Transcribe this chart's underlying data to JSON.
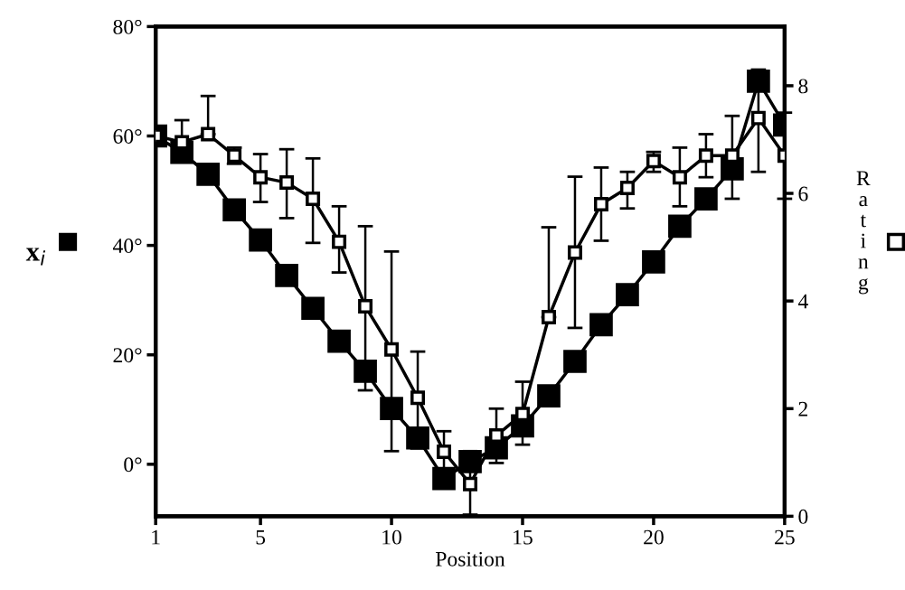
{
  "chart_data": {
    "type": "line",
    "xlabel": "Position",
    "ylabel": "x$_{i}$",
    "y2label": "Rating",
    "x": [
      1,
      2,
      3,
      4,
      5,
      6,
      7,
      8,
      9,
      10,
      11,
      12,
      13,
      14,
      15,
      16,
      17,
      18,
      19,
      20,
      21,
      22,
      23,
      24,
      25
    ],
    "xlim": [
      1,
      25
    ],
    "xticks": [
      1,
      5,
      10,
      15,
      20,
      25
    ],
    "ylim": [
      -9.5,
      80
    ],
    "yticks": [
      {
        "value": 0,
        "label": "0°"
      },
      {
        "value": 20,
        "label": "20°"
      },
      {
        "value": 40,
        "label": "40°"
      },
      {
        "value": 60,
        "label": "60°"
      },
      {
        "value": 80,
        "label": "80°"
      }
    ],
    "y2lim": [
      0,
      9.1
    ],
    "y2ticks": [
      0,
      2,
      4,
      6,
      8
    ],
    "marker": "square",
    "grid": false,
    "legend": false,
    "series": [
      {
        "color": "#000000",
        "values": [
          60,
          57,
          53,
          46.5,
          41,
          34.5,
          28.5,
          22.5,
          17,
          10.2,
          4.8,
          -2.6,
          0.5,
          3,
          7,
          12.5,
          18.8,
          25.5,
          31,
          37,
          43.5,
          48.5,
          54,
          70,
          62
        ]
      },
      {
        "color": "#000000",
        "axis": "y2",
        "values": [
          7.07,
          6.95,
          7.1,
          6.7,
          6.3,
          6.2,
          5.9,
          5.1,
          3.9,
          3.1,
          2.2,
          1.2,
          0.6,
          1.5,
          1.9,
          3.7,
          4.9,
          5.8,
          6.1,
          6.6,
          6.3,
          6.7,
          6.7,
          7.4,
          6.7
        ],
        "errors": [
          null,
          [
            6.6,
            7.36
          ],
          [
            7.1,
            7.81
          ],
          [
            6.55,
            6.85
          ],
          [
            5.84,
            6.73
          ],
          [
            5.54,
            6.82
          ],
          [
            5.08,
            6.65
          ],
          [
            4.53,
            5.76
          ],
          [
            2.34,
            5.39
          ],
          [
            1.21,
            4.92
          ],
          [
            1.26,
            3.06
          ],
          [
            0.88,
            1.58
          ],
          [
            0.03,
            1.21
          ],
          [
            0.99,
            2.0
          ],
          [
            1.33,
            2.5
          ],
          [
            3.7,
            5.37
          ],
          [
            3.5,
            6.31
          ],
          [
            5.12,
            6.48
          ],
          [
            5.72,
            6.4
          ],
          [
            6.4,
            6.77
          ],
          [
            5.76,
            6.85
          ],
          [
            6.3,
            7.1
          ],
          [
            5.9,
            7.44
          ],
          [
            6.4,
            8.3
          ],
          [
            5.9,
            7.5
          ]
        ]
      }
    ]
  }
}
